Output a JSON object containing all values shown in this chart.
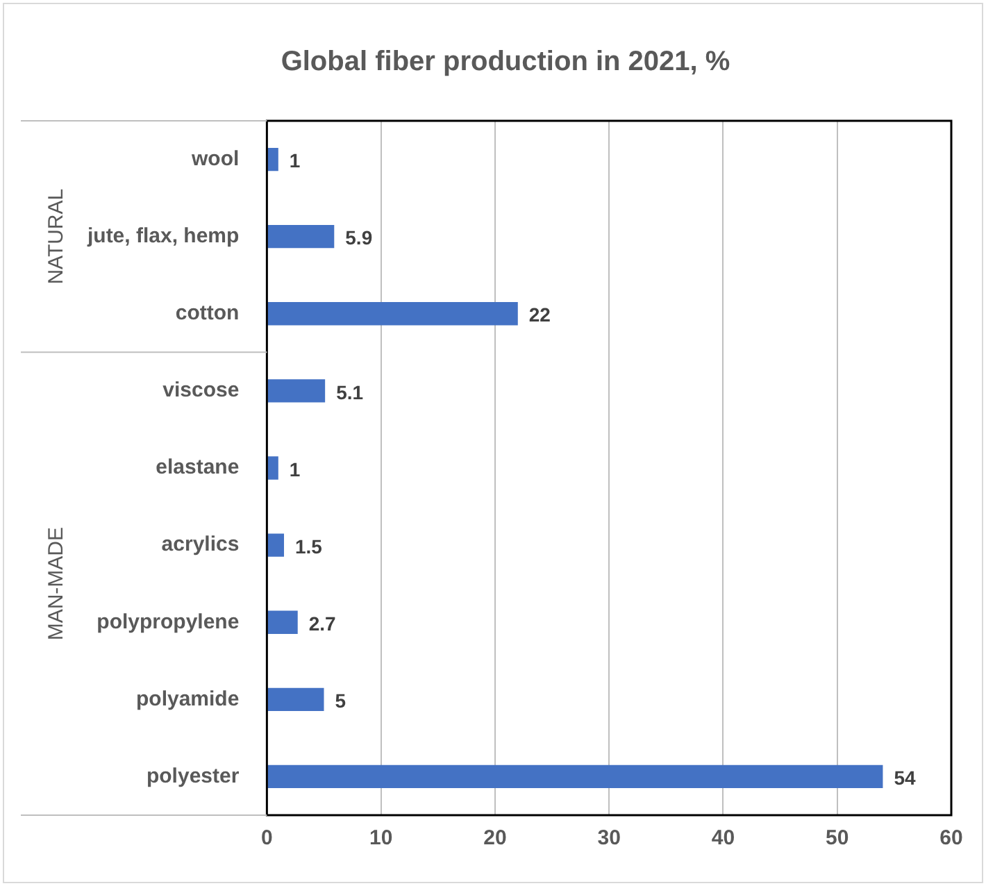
{
  "chart_data": {
    "type": "bar",
    "orientation": "horizontal",
    "title": "Global fiber production in 2021, %",
    "categories": [
      "wool",
      "jute, flax, hemp",
      "cotton",
      "viscose",
      "elastane",
      "acrylics",
      "polypropylene",
      "polyamide",
      "polyester"
    ],
    "values": [
      1,
      5.9,
      22,
      5.1,
      1,
      1.5,
      2.7,
      5,
      54
    ],
    "color": "#4472c4",
    "xlim": [
      0,
      60
    ],
    "xticks": [
      0,
      10,
      20,
      30,
      40,
      50,
      60
    ],
    "grid": "x",
    "legend": false,
    "data_labels": true,
    "annotations": [
      "NATURAL",
      "MAN-MADE"
    ]
  }
}
